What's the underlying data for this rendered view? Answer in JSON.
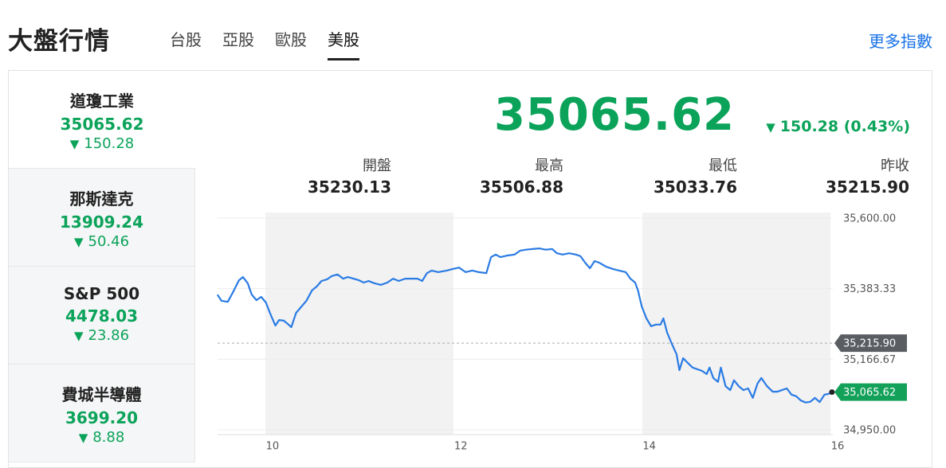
{
  "header": {
    "title": "大盤行情",
    "tabs": [
      "台股",
      "亞股",
      "歐股",
      "美股"
    ],
    "more": "更多指數"
  },
  "indices": [
    {
      "name": "道瓊工業",
      "price": "35065.62",
      "change": "150.28"
    },
    {
      "name": "那斯達克",
      "price": "13909.24",
      "change": "50.46"
    },
    {
      "name": "S&P 500",
      "price": "4478.03",
      "change": "23.86"
    },
    {
      "name": "費城半導體",
      "price": "3699.20",
      "change": "8.88"
    }
  ],
  "quote": {
    "price": "35065.62",
    "change": "150.28 (0.43%)",
    "stats": [
      {
        "label": "開盤",
        "value": "35230.13"
      },
      {
        "label": "最高",
        "value": "35506.88"
      },
      {
        "label": "最低",
        "value": "35033.76"
      },
      {
        "label": "昨收",
        "value": "35215.90"
      }
    ]
  },
  "chart": {
    "type": "line",
    "color": "#2a7be4",
    "x": [
      9.415,
      9.458,
      9.525,
      9.576,
      9.644,
      9.686,
      9.737,
      9.78,
      9.83,
      9.88,
      9.93,
      9.98,
      10.03,
      10.07,
      10.12,
      10.17,
      10.2,
      10.25,
      10.31,
      10.36,
      10.42,
      10.47,
      10.52,
      10.58,
      10.63,
      10.69,
      10.75,
      10.8,
      10.86,
      10.92,
      10.97,
      11.02,
      11.08,
      11.15,
      11.22,
      11.28,
      11.34,
      11.41,
      11.47,
      11.54,
      11.59,
      11.64,
      11.69,
      11.76,
      11.85,
      11.92,
      11.98,
      12.05,
      12.12,
      12.19,
      12.27,
      12.32,
      12.37,
      12.42,
      12.49,
      12.57,
      12.63,
      12.69,
      12.76,
      12.83,
      12.9,
      12.97,
      13.02,
      13.08,
      13.15,
      13.22,
      13.27,
      13.32,
      13.37,
      13.42,
      13.47,
      13.54,
      13.61,
      13.68,
      13.75,
      13.8,
      13.85,
      13.88,
      13.92,
      13.97,
      14.02,
      14.07,
      14.12,
      14.15,
      14.19,
      14.24,
      14.29,
      14.32,
      14.36,
      14.41,
      14.46,
      14.51,
      14.56,
      14.61,
      14.64,
      14.68,
      14.73,
      14.76,
      14.81,
      14.86,
      14.9,
      14.95,
      15.0,
      15.05,
      15.1,
      15.15,
      15.19,
      15.25,
      15.31,
      15.36,
      15.41,
      15.46,
      15.51,
      15.56,
      15.61,
      15.66,
      15.71,
      15.76,
      15.81,
      15.86,
      15.9,
      15.94
    ],
    "values": [
      35365,
      35346,
      35343,
      35370,
      35409,
      35419,
      35400,
      35365,
      35348,
      35358,
      35341,
      35304,
      35270,
      35287,
      35285,
      35273,
      35265,
      35309,
      35329,
      35346,
      35378,
      35390,
      35407,
      35412,
      35422,
      35427,
      35414,
      35419,
      35414,
      35409,
      35402,
      35407,
      35400,
      35395,
      35402,
      35414,
      35407,
      35414,
      35414,
      35414,
      35407,
      35431,
      35439,
      35434,
      35439,
      35444,
      35448,
      35434,
      35439,
      35434,
      35431,
      35480,
      35488,
      35480,
      35485,
      35488,
      35500,
      35503,
      35505,
      35507,
      35503,
      35505,
      35492,
      35488,
      35492,
      35488,
      35483,
      35463,
      35446,
      35468,
      35463,
      35451,
      35444,
      35439,
      35434,
      35414,
      35402,
      35378,
      35329,
      35292,
      35268,
      35273,
      35273,
      35292,
      35248,
      35214,
      35182,
      35133,
      35170,
      35155,
      35141,
      35136,
      35131,
      35121,
      35141,
      35109,
      35097,
      35141,
      35084,
      35072,
      35102,
      35084,
      35072,
      35077,
      35048,
      35092,
      35109,
      35084,
      35067,
      35067,
      35072,
      35077,
      35058,
      35053,
      35040,
      35033.76,
      35036,
      35048,
      35035,
      35058,
      35060,
      35065.62
    ],
    "last_value_label": "35,065.62",
    "reference": {
      "value": 35215.9,
      "label": "35,215.90"
    },
    "xlim": [
      9.4,
      16
    ],
    "xticks": [
      10,
      12,
      14,
      16
    ],
    "ylim": [
      34950,
      35600
    ],
    "yticks": [
      {
        "value": 35600,
        "label": "35,600.00"
      },
      {
        "value": 35383.33,
        "label": "35,383.33"
      },
      {
        "value": 35166.67,
        "label": "35,166.67"
      },
      {
        "value": 34950,
        "label": "34,950.00"
      }
    ],
    "grid": true
  }
}
